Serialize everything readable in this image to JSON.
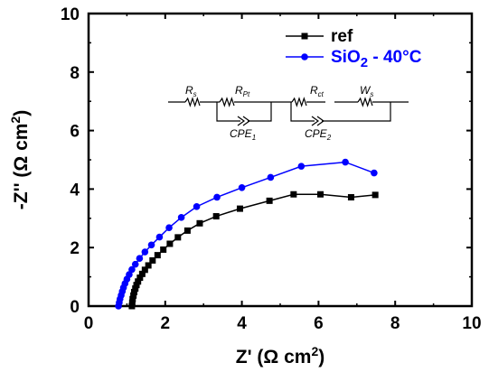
{
  "chart_data": {
    "type": "scatter",
    "xlabel": "Z' (Ω cm²)",
    "ylabel": "-Z'' (Ω cm²)",
    "xlim": [
      0,
      10
    ],
    "ylim": [
      0,
      10
    ],
    "xticks": [
      "0",
      "2",
      "4",
      "6",
      "8",
      "10"
    ],
    "yticks": [
      "0",
      "2",
      "4",
      "6",
      "8",
      "10"
    ],
    "grid": false,
    "legend_position": "top-right",
    "series": [
      {
        "name": "ref",
        "color": "#000000",
        "marker": "square",
        "x": [
          1.13,
          1.14,
          1.15,
          1.17,
          1.19,
          1.22,
          1.25,
          1.29,
          1.34,
          1.4,
          1.47,
          1.56,
          1.67,
          1.8,
          1.95,
          2.12,
          2.33,
          2.58,
          2.9,
          3.33,
          3.95,
          4.72,
          5.35,
          6.05,
          6.85,
          7.48
        ],
        "y": [
          0.0,
          0.12,
          0.24,
          0.36,
          0.48,
          0.6,
          0.72,
          0.84,
          0.97,
          1.1,
          1.24,
          1.39,
          1.56,
          1.74,
          1.93,
          2.13,
          2.35,
          2.58,
          2.83,
          3.07,
          3.33,
          3.6,
          3.82,
          3.82,
          3.72,
          3.8
        ]
      },
      {
        "name": "SiO2  - 40°C",
        "color": "#0000ff",
        "marker": "circle",
        "x": [
          0.78,
          0.8,
          0.82,
          0.85,
          0.88,
          0.91,
          0.95,
          1.0,
          1.06,
          1.13,
          1.22,
          1.33,
          1.47,
          1.64,
          1.85,
          2.1,
          2.42,
          2.82,
          3.35,
          4.0,
          4.75,
          5.55,
          6.7,
          7.45
        ],
        "y": [
          0.0,
          0.12,
          0.24,
          0.37,
          0.5,
          0.63,
          0.77,
          0.92,
          1.08,
          1.25,
          1.43,
          1.63,
          1.85,
          2.09,
          2.36,
          2.68,
          3.03,
          3.4,
          3.72,
          4.05,
          4.4,
          4.78,
          4.92,
          4.55
        ]
      }
    ],
    "legend": [
      {
        "base": "ref",
        "sub": "",
        "suffix": ""
      },
      {
        "base": "SiO",
        "sub": "2",
        "suffix": "  - 40°C"
      }
    ],
    "inset_circuit": {
      "labels": [
        {
          "base": "R",
          "sub": "s"
        },
        {
          "base": "R",
          "sub": "Pt"
        },
        {
          "base": "CPE",
          "sub": "1"
        },
        {
          "base": "R",
          "sub": "ct"
        },
        {
          "base": "W",
          "sub": "s"
        },
        {
          "base": "CPE",
          "sub": "2"
        }
      ]
    }
  }
}
